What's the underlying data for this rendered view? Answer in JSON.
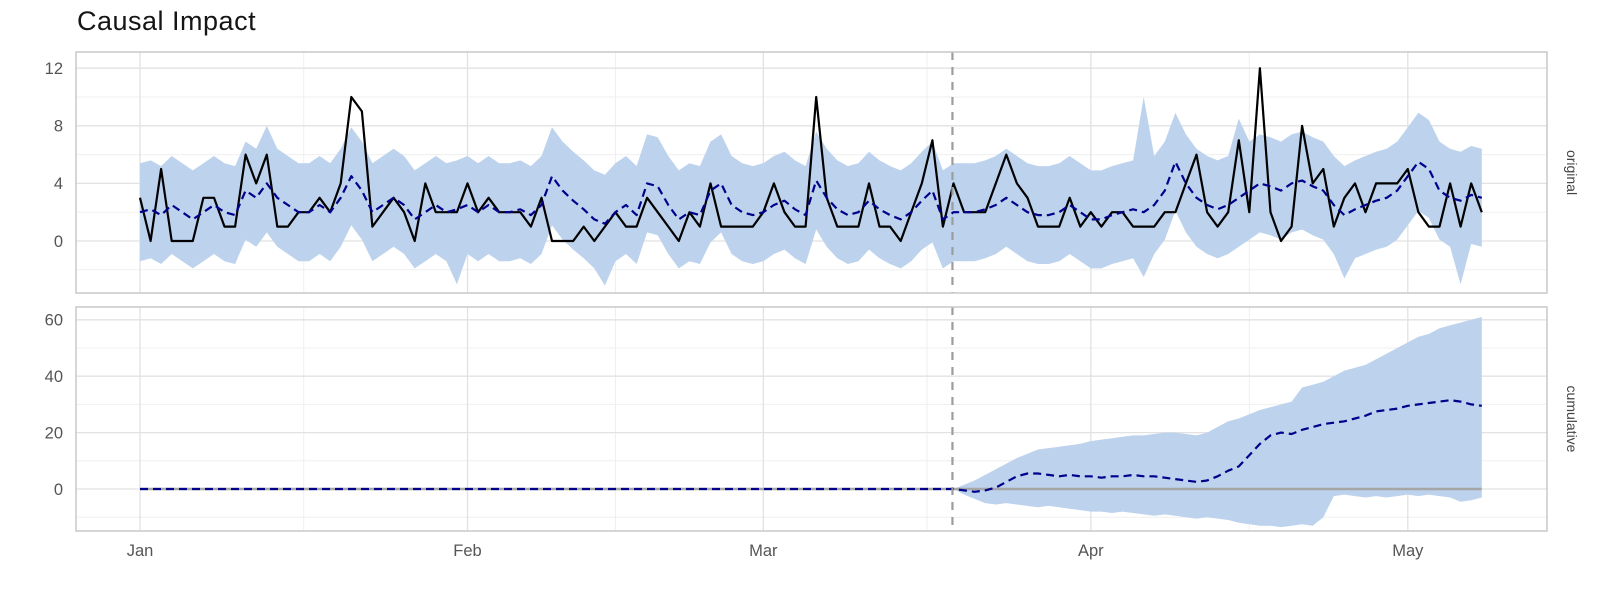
{
  "title": "Causal Impact",
  "strip_labels": {
    "top": "original",
    "bottom": "cumulative"
  },
  "x_axis": {
    "month_labels": [
      "Jan",
      "Feb",
      "Mar",
      "Apr",
      "May"
    ],
    "month_start_days": [
      0,
      31,
      59,
      90,
      120
    ],
    "minor_grid_days": [
      15.5,
      45,
      74.5,
      105
    ],
    "n_days": 128,
    "intervention_day": 76.9
  },
  "colors": {
    "band": "#bcd2ed",
    "predicted": "#00008b",
    "observed": "#000000",
    "intervention_line": "#9c9c9c",
    "zero_line": "#a6a6a6",
    "grid_major": "#e2e2e2",
    "grid_minor": "#efefef",
    "panel_border": "#c9c9c9",
    "tick_label": "#555555",
    "strip_label": "#444444",
    "title": "#151515"
  },
  "chart_data": [
    {
      "type": "line",
      "panel": "original",
      "ylim": [
        -3.6,
        13.1
      ],
      "yticks_major": [
        0,
        4,
        8,
        12
      ],
      "yticks_minor": [
        -2,
        2,
        6,
        10
      ],
      "series": {
        "observed": [
          3,
          0,
          5,
          0,
          0,
          0,
          3,
          3,
          1,
          1,
          6,
          4,
          6,
          1,
          1,
          2,
          2,
          3,
          2,
          4,
          10,
          9,
          1,
          2,
          3,
          2,
          0,
          4,
          2,
          2,
          2,
          4,
          2,
          3,
          2,
          2,
          2,
          1,
          3,
          0,
          0,
          0,
          1,
          0,
          1,
          2,
          1,
          1,
          3,
          2,
          1,
          0,
          2,
          1,
          4,
          1,
          1,
          1,
          1,
          2,
          4,
          2,
          1,
          1,
          10,
          3,
          1,
          1,
          1,
          4,
          1,
          1,
          0,
          2,
          4,
          7,
          1,
          4,
          2,
          2,
          2,
          4,
          6,
          4,
          3,
          1,
          1,
          1,
          3,
          1,
          2,
          1,
          2,
          2,
          1,
          1,
          1,
          2,
          2,
          4,
          6,
          2,
          1,
          2,
          7,
          2,
          12,
          2,
          0,
          1,
          8,
          4,
          5,
          1,
          3,
          4,
          2,
          4,
          4,
          4,
          5,
          2,
          1,
          1,
          4,
          1,
          4,
          2
        ],
        "predicted": [
          2,
          2.2,
          1.8,
          2.5,
          2,
          1.5,
          2,
          2.5,
          2,
          1.8,
          3.5,
          3,
          4,
          3,
          2.5,
          2,
          2,
          2.5,
          2,
          3,
          4.5,
          3.5,
          2,
          2.5,
          3,
          2.5,
          1.5,
          2,
          2.5,
          2,
          2.2,
          2.5,
          2,
          2.5,
          2,
          2,
          2.2,
          1.8,
          2.5,
          4.5,
          3.5,
          2.8,
          2.2,
          1.5,
          1.2,
          2,
          2.5,
          1.8,
          4,
          3.8,
          2.5,
          1.5,
          2,
          1.8,
          3.5,
          4,
          2.5,
          2,
          1.8,
          2,
          2.5,
          2.8,
          2.2,
          1.8,
          4.2,
          3,
          2.2,
          1.8,
          2,
          2.8,
          2.2,
          1.8,
          1.5,
          2,
          2.8,
          3.5,
          1.5,
          2,
          2,
          2,
          2.2,
          2.5,
          3,
          2.5,
          2,
          1.8,
          1.8,
          2,
          2.5,
          2,
          1.5,
          1.5,
          1.8,
          2,
          2.2,
          2,
          2.5,
          3.5,
          5.5,
          4,
          3,
          2.5,
          2.2,
          2.5,
          3,
          3.5,
          4,
          3.8,
          3.5,
          4,
          4.2,
          3.8,
          3.5,
          2.5,
          1.8,
          2.2,
          2.5,
          2.8,
          3,
          3.5,
          4.5,
          5.5,
          5,
          3.5,
          3,
          2.8,
          3.2,
          3
        ],
        "ci_upper": [
          5.4,
          5.6,
          5.2,
          5.9,
          5.4,
          4.9,
          5.4,
          5.9,
          5.4,
          5.2,
          6.9,
          6.4,
          8,
          6.4,
          5.9,
          5.4,
          5.4,
          5.9,
          5.4,
          6.4,
          7.9,
          6.9,
          5.4,
          5.9,
          6.4,
          5.9,
          4.9,
          5.4,
          5.9,
          5.4,
          5.6,
          5.9,
          5.4,
          5.9,
          5.4,
          5.4,
          5.6,
          5.2,
          5.9,
          7.9,
          6.9,
          6.2,
          5.6,
          4.9,
          4.6,
          5.4,
          5.9,
          5.2,
          7.4,
          7.2,
          5.9,
          4.9,
          5.4,
          5.2,
          6.9,
          7.4,
          5.9,
          5.4,
          5.2,
          5.4,
          5.9,
          6.2,
          5.6,
          5.2,
          7.6,
          6.4,
          5.6,
          5.2,
          5.4,
          6.2,
          5.6,
          5.2,
          4.9,
          5.4,
          6.2,
          6.9,
          4.9,
          5.4,
          5.4,
          5.4,
          5.6,
          5.9,
          6.4,
          5.9,
          5.4,
          5.2,
          5.2,
          5.4,
          5.9,
          5.4,
          4.9,
          4.9,
          5.2,
          5.4,
          5.6,
          10,
          5.9,
          6.9,
          8.9,
          7.4,
          6.4,
          5.9,
          5.6,
          5.9,
          8.5,
          6.9,
          7.4,
          7.2,
          6.9,
          7.4,
          7.6,
          7.2,
          6.9,
          5.9,
          5.2,
          5.6,
          5.9,
          6.2,
          6.4,
          6.9,
          7.9,
          8.9,
          8.4,
          6.9,
          6.4,
          6.2,
          6.6,
          6.4
        ],
        "ci_lower": [
          -1.4,
          -1.2,
          -1.6,
          -0.9,
          -1.4,
          -1.9,
          -1.4,
          -0.9,
          -1.4,
          -1.6,
          0.1,
          -0.4,
          0.6,
          -0.4,
          -0.9,
          -1.4,
          -1.4,
          -0.9,
          -1.4,
          -0.4,
          1.1,
          0.1,
          -1.4,
          -0.9,
          -0.4,
          -0.9,
          -1.9,
          -1.4,
          -0.9,
          -1.4,
          -3,
          -0.9,
          -1.4,
          -0.9,
          -1.4,
          -1.4,
          -1.2,
          -1.6,
          -0.9,
          1.1,
          0.1,
          -0.6,
          -1.2,
          -1.9,
          -3.1,
          -1.4,
          -0.9,
          -1.6,
          0.6,
          0.4,
          -0.9,
          -1.9,
          -1.4,
          -1.6,
          -0.1,
          0.6,
          -0.9,
          -1.4,
          -1.6,
          -1.4,
          -0.9,
          -0.6,
          -1.2,
          -1.6,
          0.8,
          -0.4,
          -1.2,
          -1.6,
          -1.4,
          -0.6,
          -1.2,
          -1.6,
          -1.9,
          -1.4,
          -0.6,
          -0.1,
          -1.9,
          -1.4,
          -1.4,
          -1.4,
          -1.2,
          -0.9,
          -0.4,
          -0.9,
          -1.4,
          -1.6,
          -1.6,
          -1.4,
          -0.9,
          -1.4,
          -1.9,
          -1.9,
          -1.6,
          -1.4,
          -1.2,
          -2.5,
          -0.9,
          0.1,
          2.1,
          0.6,
          -0.4,
          -0.9,
          -1.2,
          -0.9,
          -0.4,
          0.1,
          0.6,
          0.4,
          0.1,
          0.6,
          0.8,
          0.4,
          0.1,
          -0.9,
          -2.6,
          -1.2,
          -0.9,
          -0.6,
          -0.4,
          0.1,
          1.1,
          2.1,
          1.6,
          0.1,
          -0.4,
          -3,
          -0.2,
          -0.4
        ]
      }
    },
    {
      "type": "line",
      "panel": "cumulative",
      "ylim": [
        -15,
        64.5
      ],
      "yticks_major": [
        0,
        20,
        40,
        60
      ],
      "yticks_minor": [
        -10,
        10,
        30,
        50
      ],
      "zero_line": true,
      "series": {
        "pre_days": 78,
        "pre_value": 0,
        "post_pointwise": [
          -0.5,
          -1,
          -0.5,
          0.5,
          2.5,
          4.5,
          5.5,
          5.5,
          5,
          4.5,
          5,
          4.5,
          4.5,
          4,
          4.5,
          4.5,
          5,
          4.5,
          4.5,
          4,
          3.5,
          3,
          2.5,
          3,
          4.5,
          6.5,
          8,
          12,
          16,
          19,
          20,
          19.5,
          21,
          22,
          23,
          23.5,
          24,
          25,
          26,
          27.5,
          28,
          28.5,
          29.5,
          30,
          30.5,
          31,
          31.5,
          31,
          30,
          29.5
        ],
        "post_upper": [
          1.5,
          3,
          5,
          7,
          9,
          11,
          12.5,
          14,
          14.5,
          15,
          15.5,
          16,
          17,
          17.5,
          18,
          18.5,
          19,
          19,
          19.5,
          20,
          20,
          19.5,
          19,
          20,
          22,
          24,
          25,
          26.5,
          28,
          29,
          30,
          31,
          36,
          37,
          38,
          40,
          42,
          43,
          44,
          46,
          48,
          50,
          52,
          54,
          55,
          57,
          58,
          59,
          60,
          61
        ],
        "post_lower": [
          -2,
          -3.5,
          -5,
          -5.5,
          -5,
          -5.5,
          -6,
          -6.5,
          -6,
          -6.5,
          -7,
          -7.5,
          -8,
          -8,
          -8.5,
          -8,
          -8.5,
          -9,
          -9.5,
          -9,
          -9.5,
          -10,
          -10.5,
          -10,
          -10.5,
          -11,
          -12,
          -12.5,
          -13,
          -13,
          -13.5,
          -13,
          -12.5,
          -13,
          -10,
          -2.5,
          -2,
          -2.5,
          -3,
          -2.5,
          -3,
          -2.5,
          -2,
          -2.5,
          -2,
          -2.5,
          -3,
          -4.5,
          -4,
          -3
        ]
      }
    }
  ]
}
